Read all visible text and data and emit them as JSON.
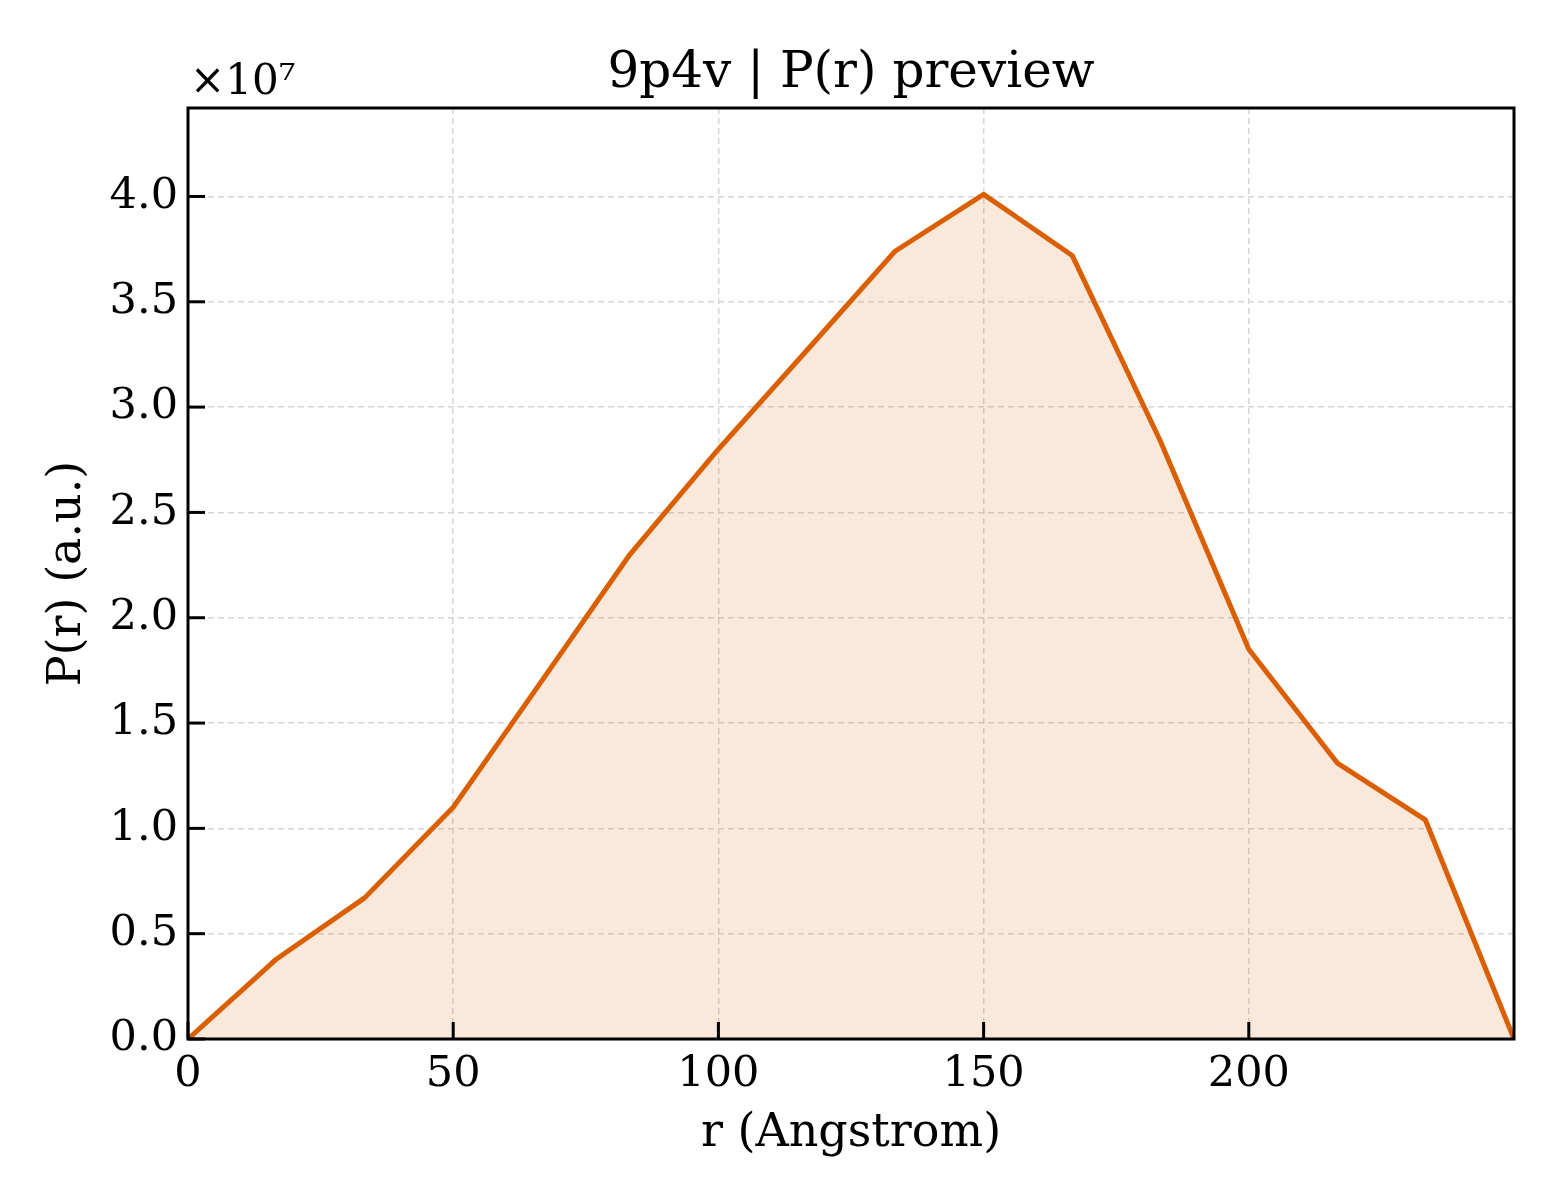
{
  "chart_data": {
    "type": "area",
    "title": "9p4v | P(r) preview",
    "xlabel": "r (Angstrom)",
    "ylabel": "P(r) (a.u.)",
    "annotations": [
      "×10⁷"
    ],
    "x": [
      0,
      16.7,
      33.3,
      50,
      66.7,
      83.3,
      100,
      116.7,
      133.3,
      150,
      166.7,
      183.3,
      200,
      216.7,
      233.3,
      250
    ],
    "series": [
      {
        "color": "#d95f02",
        "values": [
          0,
          0.38,
          0.67,
          1.1,
          1.7,
          2.3,
          2.8,
          3.27,
          3.74,
          4.01,
          3.72,
          2.84,
          1.85,
          1.31,
          1.04,
          0
        ]
      }
    ],
    "xlim": [
      0,
      250
    ],
    "ylim": [
      0,
      4.42
    ],
    "xticks": [
      0,
      50,
      100,
      150,
      200
    ],
    "yticks": [
      {
        "value": 0,
        "label": "0.0"
      },
      0.5,
      {
        "value": 1,
        "label": "1.0"
      },
      1.5,
      {
        "value": 2,
        "label": "2.0"
      },
      2.5,
      {
        "value": 3,
        "label": "3.0"
      },
      3.5,
      {
        "value": 4,
        "label": "4.0"
      }
    ],
    "grid": true
  }
}
